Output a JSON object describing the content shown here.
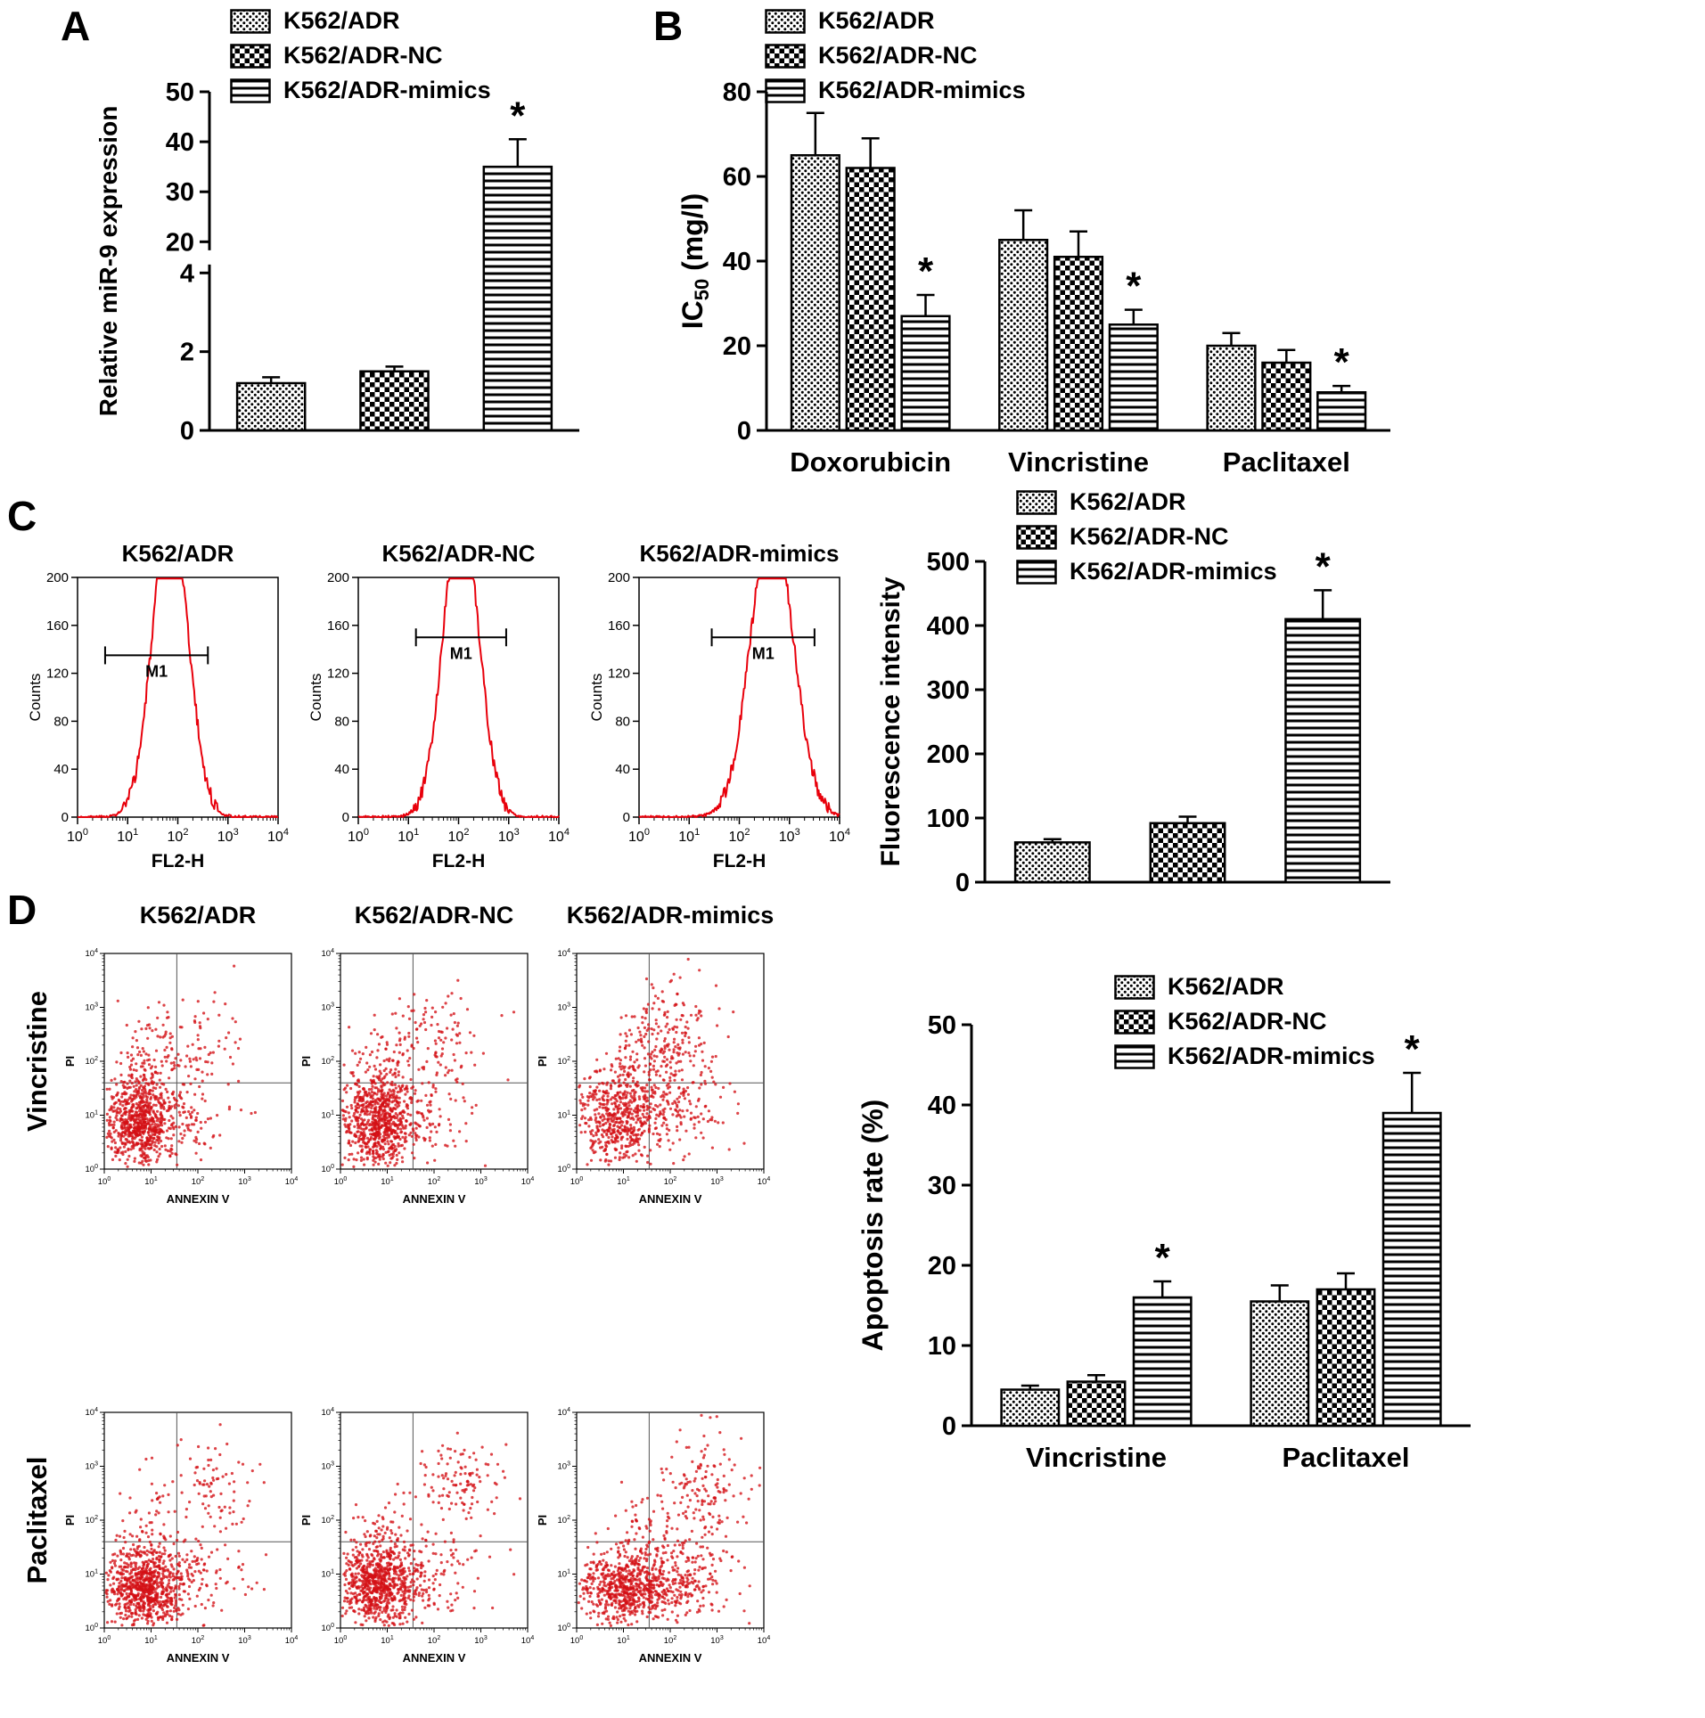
{
  "panels": {
    "a": "A",
    "b": "B",
    "c": "C",
    "d": "D"
  },
  "colors": {
    "curve_red": "#e8000b",
    "dot_red": "#d40f14",
    "axis_black": "#000000",
    "background": "#ffffff"
  },
  "legend": {
    "items": [
      {
        "label": "K562/ADR",
        "pattern": "dots"
      },
      {
        "label": "K562/ADR-NC",
        "pattern": "checker"
      },
      {
        "label": "K562/ADR-mimics",
        "pattern": "hlines"
      }
    ]
  },
  "panelD": {
    "col_titles": [
      "K562/ADR",
      "K562/ADR-NC",
      "K562/ADR-mimics"
    ],
    "row_titles": [
      "Vincristine",
      "Paclitaxel"
    ]
  },
  "chart_data": [
    {
      "id": "bar-a",
      "type": "bar",
      "title": "",
      "ylabel": "Relative miR-9 expression",
      "categories": [
        ""
      ],
      "series": [
        {
          "name": "K562/ADR",
          "pattern": "dots",
          "values": [
            1.2
          ],
          "errors": [
            0.15
          ],
          "sig": [
            null
          ]
        },
        {
          "name": "K562/ADR-NC",
          "pattern": "checker",
          "values": [
            1.5
          ],
          "errors": [
            0.12
          ],
          "sig": [
            null
          ]
        },
        {
          "name": "K562/ADR-mimics",
          "pattern": "hlines",
          "values": [
            35
          ],
          "errors": [
            5.5
          ],
          "sig": [
            "*"
          ]
        }
      ],
      "yticks": [
        0,
        2,
        4,
        20,
        30,
        40,
        50
      ],
      "axis_break": true,
      "segments": [
        {
          "v0": 0,
          "v1": 4,
          "f0": 0,
          "f1": 0.465
        },
        {
          "v0": 20,
          "v1": 50,
          "f0": 0.557,
          "f1": 1
        }
      ]
    },
    {
      "id": "bar-b",
      "type": "bar",
      "title": "",
      "ylabel": "IC50 (mg/l)",
      "ylabel_parts": [
        "IC",
        "50",
        " (mg/l)"
      ],
      "categories": [
        "Doxorubicin",
        "Vincristine",
        "Paclitaxel"
      ],
      "series": [
        {
          "name": "K562/ADR",
          "pattern": "dots",
          "values": [
            65,
            45,
            20
          ],
          "errors": [
            10,
            7,
            3
          ],
          "sig": [
            null,
            null,
            null
          ]
        },
        {
          "name": "K562/ADR-NC",
          "pattern": "checker",
          "values": [
            62,
            41,
            16
          ],
          "errors": [
            7,
            6,
            3
          ],
          "sig": [
            null,
            null,
            null
          ]
        },
        {
          "name": "K562/ADR-mimics",
          "pattern": "hlines",
          "values": [
            27,
            25,
            9
          ],
          "errors": [
            5,
            3.5,
            1.5
          ],
          "sig": [
            "*",
            "*",
            "*"
          ]
        }
      ],
      "ylim": [
        0,
        80
      ],
      "yticks": [
        0,
        20,
        40,
        60,
        80
      ]
    },
    {
      "id": "hist-1",
      "type": "flow_histogram",
      "title": "K562/ADR",
      "xlabel": "FL2-H",
      "ylabel": "Counts",
      "ymax": 200,
      "yticks": [
        0,
        40,
        80,
        120,
        160,
        200
      ],
      "xlog_range": [
        0,
        4
      ],
      "peak_log": 1.85,
      "sigma_log": 0.35,
      "peak_height": 260,
      "seed": 3,
      "gate": {
        "label": "M1",
        "x0": 0.55,
        "x1": 2.6,
        "y": 135
      }
    },
    {
      "id": "hist-2",
      "type": "flow_histogram",
      "title": "K562/ADR-NC",
      "xlabel": "FL2-H",
      "ylabel": "Counts",
      "ymax": 200,
      "yticks": [
        0,
        40,
        80,
        120,
        160,
        200
      ],
      "xlog_range": [
        0,
        4
      ],
      "peak_log": 2.05,
      "sigma_log": 0.35,
      "peak_height": 260,
      "seed": 5,
      "gate": {
        "label": "M1",
        "x0": 1.15,
        "x1": 2.95,
        "y": 150
      }
    },
    {
      "id": "hist-3",
      "type": "flow_histogram",
      "title": "K562/ADR-mimics",
      "xlabel": "FL2-H",
      "ylabel": "Counts",
      "ymax": 200,
      "yticks": [
        0,
        40,
        80,
        120,
        160,
        200
      ],
      "xlog_range": [
        0,
        4
      ],
      "peak_log": 2.65,
      "sigma_log": 0.42,
      "peak_height": 250,
      "seed": 9,
      "gate": {
        "label": "M1",
        "x0": 1.45,
        "x1": 3.5,
        "y": 150
      }
    },
    {
      "id": "bar-c",
      "type": "bar",
      "title": "",
      "ylabel": "Fluorescence intensity",
      "categories": [
        ""
      ],
      "series": [
        {
          "name": "K562/ADR",
          "pattern": "dots",
          "values": [
            62
          ],
          "errors": [
            5
          ],
          "sig": [
            null
          ]
        },
        {
          "name": "K562/ADR-NC",
          "pattern": "checker",
          "values": [
            92
          ],
          "errors": [
            10
          ],
          "sig": [
            null
          ]
        },
        {
          "name": "K562/ADR-mimics",
          "pattern": "hlines",
          "values": [
            410
          ],
          "errors": [
            45
          ],
          "sig": [
            "*"
          ]
        }
      ],
      "ylim": [
        0,
        500
      ],
      "yticks": [
        0,
        100,
        200,
        300,
        400,
        500
      ]
    },
    {
      "id": "scat-1",
      "type": "flow_scatter",
      "row": "Vincristine",
      "col": "K562/ADR",
      "xlabel": "ANNEXIN V",
      "ylabel": "PI",
      "xlog_range": [
        0,
        4
      ],
      "ylog_range": [
        0,
        4
      ],
      "cross": [
        1.55,
        1.6
      ],
      "seed": 21,
      "clusters": [
        [
          0.75,
          0.85,
          0.38,
          0.42,
          700
        ],
        [
          0.8,
          1.7,
          0.35,
          0.5,
          120
        ],
        [
          1.9,
          2.3,
          0.55,
          0.45,
          110
        ],
        [
          1.6,
          0.9,
          0.5,
          0.35,
          90
        ]
      ]
    },
    {
      "id": "scat-2",
      "type": "flow_scatter",
      "row": "Vincristine",
      "col": "K562/ADR-NC",
      "xlabel": "ANNEXIN V",
      "ylabel": "PI",
      "xlog_range": [
        0,
        4
      ],
      "ylog_range": [
        0,
        4
      ],
      "cross": [
        1.55,
        1.6
      ],
      "seed": 22,
      "clusters": [
        [
          0.78,
          0.85,
          0.4,
          0.42,
          720
        ],
        [
          0.85,
          1.75,
          0.38,
          0.5,
          110
        ],
        [
          2.0,
          2.35,
          0.55,
          0.5,
          120
        ],
        [
          1.7,
          0.95,
          0.5,
          0.38,
          90
        ]
      ]
    },
    {
      "id": "scat-3",
      "type": "flow_scatter",
      "row": "Vincristine",
      "col": "K562/ADR-mimics",
      "xlabel": "ANNEXIN V",
      "ylabel": "PI",
      "xlog_range": [
        0,
        4
      ],
      "ylog_range": [
        0,
        4
      ],
      "cross": [
        1.55,
        1.6
      ],
      "seed": 23,
      "clusters": [
        [
          0.85,
          0.9,
          0.42,
          0.45,
          520
        ],
        [
          1.95,
          2.4,
          0.5,
          0.5,
          200
        ],
        [
          2.1,
          1.1,
          0.55,
          0.4,
          150
        ],
        [
          1.2,
          1.8,
          0.5,
          0.5,
          80
        ]
      ]
    },
    {
      "id": "scat-4",
      "type": "flow_scatter",
      "row": "Paclitaxel",
      "col": "K562/ADR",
      "xlabel": "ANNEXIN V",
      "ylabel": "PI",
      "xlog_range": [
        0,
        4
      ],
      "ylog_range": [
        0,
        4
      ],
      "cross": [
        1.55,
        1.6
      ],
      "seed": 24,
      "clusters": [
        [
          0.8,
          0.75,
          0.42,
          0.38,
          800
        ],
        [
          1.8,
          1.0,
          0.6,
          0.4,
          130
        ],
        [
          2.3,
          2.6,
          0.5,
          0.45,
          80
        ],
        [
          1.2,
          1.9,
          0.5,
          0.55,
          60
        ]
      ]
    },
    {
      "id": "scat-5",
      "type": "flow_scatter",
      "row": "Paclitaxel",
      "col": "K562/ADR-NC",
      "xlabel": "ANNEXIN V",
      "ylabel": "PI",
      "xlog_range": [
        0,
        4
      ],
      "ylog_range": [
        0,
        4
      ],
      "cross": [
        1.55,
        1.6
      ],
      "seed": 25,
      "clusters": [
        [
          0.8,
          0.78,
          0.42,
          0.4,
          780
        ],
        [
          1.9,
          1.0,
          0.6,
          0.4,
          120
        ],
        [
          2.6,
          2.75,
          0.45,
          0.4,
          110
        ],
        [
          1.1,
          1.8,
          0.45,
          0.5,
          60
        ]
      ]
    },
    {
      "id": "scat-6",
      "type": "flow_scatter",
      "row": "Paclitaxel",
      "col": "K562/ADR-mimics",
      "xlabel": "ANNEXIN V",
      "ylabel": "PI",
      "xlog_range": [
        0,
        4
      ],
      "ylog_range": [
        0,
        4
      ],
      "cross": [
        1.55,
        1.6
      ],
      "seed": 26,
      "clusters": [
        [
          1.0,
          0.7,
          0.48,
          0.35,
          620
        ],
        [
          2.2,
          0.9,
          0.6,
          0.4,
          260
        ],
        [
          2.7,
          2.5,
          0.5,
          0.5,
          150
        ],
        [
          1.5,
          1.7,
          0.5,
          0.5,
          70
        ]
      ]
    },
    {
      "id": "bar-d",
      "type": "bar",
      "title": "",
      "ylabel": "Apoptosis rate (%)",
      "categories": [
        "Vincristine",
        "Paclitaxel"
      ],
      "series": [
        {
          "name": "K562/ADR",
          "pattern": "dots",
          "values": [
            4.5,
            15.5
          ],
          "errors": [
            0.5,
            2
          ],
          "sig": [
            null,
            null
          ]
        },
        {
          "name": "K562/ADR-NC",
          "pattern": "checker",
          "values": [
            5.5,
            17
          ],
          "errors": [
            0.8,
            2
          ],
          "sig": [
            null,
            null
          ]
        },
        {
          "name": "K562/ADR-mimics",
          "pattern": "hlines",
          "values": [
            16,
            39
          ],
          "errors": [
            2,
            5
          ],
          "sig": [
            "*",
            "*"
          ]
        }
      ],
      "ylim": [
        0,
        50
      ],
      "yticks": [
        0,
        10,
        20,
        30,
        40,
        50
      ]
    }
  ]
}
